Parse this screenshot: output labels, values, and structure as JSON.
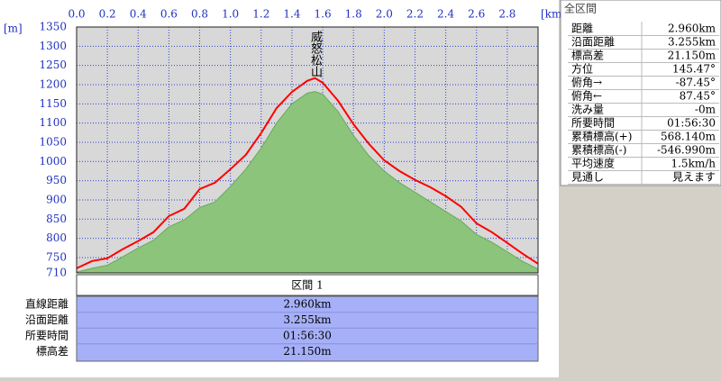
{
  "chart_data": {
    "type": "line",
    "x_unit": "[km]",
    "y_unit": "[m]",
    "annotation": "威怒松山",
    "x": [
      0,
      0.1,
      0.2,
      0.3,
      0.4,
      0.5,
      0.6,
      0.7,
      0.8,
      0.9,
      1.0,
      1.1,
      1.2,
      1.3,
      1.4,
      1.5,
      1.55,
      1.6,
      1.7,
      1.8,
      1.9,
      2.0,
      2.1,
      2.2,
      2.3,
      2.4,
      2.5,
      2.6,
      2.7,
      2.8,
      2.9,
      3.0
    ],
    "series": [
      {
        "color": "#8cc47c",
        "area": true,
        "values": [
          712,
          722,
          730,
          752,
          775,
          795,
          830,
          848,
          880,
          895,
          935,
          980,
          1035,
          1100,
          1150,
          1178,
          1182,
          1175,
          1130,
          1068,
          1015,
          975,
          945,
          920,
          895,
          870,
          845,
          810,
          790,
          765,
          740,
          720
        ]
      },
      {
        "color": "#ff0000",
        "area": false,
        "values": [
          722,
          741,
          748,
          772,
          793,
          816,
          858,
          877,
          928,
          945,
          980,
          1017,
          1074,
          1139,
          1181,
          1210,
          1217,
          1205,
          1158,
          1097,
          1046,
          1003,
          975,
          952,
          933,
          910,
          882,
          839,
          816,
          788,
          760,
          734
        ]
      }
    ],
    "xlim": [
      0,
      3.0
    ],
    "xticks": [
      {
        "value": 0,
        "label": "0.0"
      },
      0.2,
      0.4,
      0.6,
      0.8,
      {
        "value": 1,
        "label": "1.0"
      },
      1.2,
      1.4,
      1.6,
      1.8,
      {
        "value": 2,
        "label": "2.0"
      },
      2.2,
      2.4,
      2.6,
      2.8
    ],
    "ylim": [
      710,
      1350
    ],
    "yticks": [
      710,
      750,
      800,
      850,
      900,
      950,
      1000,
      1050,
      1100,
      1150,
      1200,
      1250,
      1300,
      1350
    ],
    "grid": true
  },
  "segment_table": {
    "header": "区間 1",
    "rows": [
      [
        "直線距離",
        "2.960km"
      ],
      [
        "沿面距離",
        "3.255km"
      ],
      [
        "所要時間",
        "01:56:30"
      ],
      [
        "標高差",
        "21.150m"
      ]
    ]
  },
  "summary": {
    "title": "全区間",
    "rows": [
      [
        "距離",
        "2.960km"
      ],
      [
        "沿面距離",
        "3.255km"
      ],
      [
        "標高差",
        "21.150m"
      ],
      [
        "方位",
        "145.47°"
      ],
      [
        "俯角→",
        "-87.45°"
      ],
      [
        "俯角←",
        "87.45°"
      ],
      [
        "洗み量",
        "-0m"
      ],
      [
        "所要時間",
        "01:56:30"
      ],
      [
        "累積標高(+)",
        "568.140m"
      ],
      [
        "累積標高(-)",
        "-546.990m"
      ],
      [
        "平均速度",
        "1.5km/h"
      ],
      [
        "見通し",
        "見えます"
      ]
    ]
  }
}
